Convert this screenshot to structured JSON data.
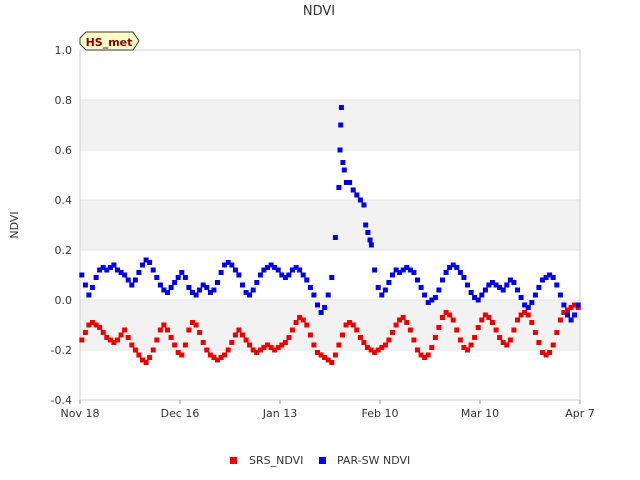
{
  "chart_data": {
    "type": "scatter",
    "title": "NDVI",
    "xlabel": "",
    "ylabel": "NDVI",
    "badge": "HS_met",
    "ylim": [
      -0.4,
      1.0
    ],
    "y_ticks": [
      "-0.4",
      "-0.2",
      "0.0",
      "0.2",
      "0.4",
      "0.6",
      "0.8",
      "1.0"
    ],
    "y_tick_values": [
      -0.4,
      -0.2,
      0.0,
      0.2,
      0.4,
      0.6,
      0.8,
      1.0
    ],
    "xlim_days": [
      0,
      140
    ],
    "x_ticks": [
      {
        "label": "Nov 18",
        "day": 0
      },
      {
        "label": "Dec 16",
        "day": 28
      },
      {
        "label": "Jan 13",
        "day": 56
      },
      {
        "label": "Feb 10",
        "day": 84
      },
      {
        "label": "Mar 10",
        "day": 112
      },
      {
        "label": "Apr 7",
        "day": 140
      }
    ],
    "bands": [
      [
        -0.2,
        0.0
      ],
      [
        0.2,
        0.4
      ],
      [
        0.6,
        0.8
      ]
    ],
    "colors": {
      "band": "#f2f2f2",
      "grid": "#e6e6e6",
      "axis": "#cccccc",
      "badge_bg": "#ffffcc"
    },
    "series": [
      {
        "name": "SRS_NDVI",
        "color": "#ee0000",
        "points": [
          [
            0.5,
            -0.16
          ],
          [
            1.5,
            -0.13
          ],
          [
            2.5,
            -0.1
          ],
          [
            3.5,
            -0.09
          ],
          [
            4.5,
            -0.1
          ],
          [
            5.5,
            -0.11
          ],
          [
            6.5,
            -0.13
          ],
          [
            7.5,
            -0.15
          ],
          [
            8.5,
            -0.16
          ],
          [
            9.5,
            -0.17
          ],
          [
            10.5,
            -0.16
          ],
          [
            11.5,
            -0.14
          ],
          [
            12.5,
            -0.12
          ],
          [
            13.5,
            -0.15
          ],
          [
            14.5,
            -0.18
          ],
          [
            15.5,
            -0.2
          ],
          [
            16.5,
            -0.22
          ],
          [
            17.5,
            -0.24
          ],
          [
            18.5,
            -0.25
          ],
          [
            19.5,
            -0.23
          ],
          [
            20.5,
            -0.2
          ],
          [
            21.5,
            -0.16
          ],
          [
            22.5,
            -0.12
          ],
          [
            23.5,
            -0.1
          ],
          [
            24.5,
            -0.12
          ],
          [
            25.5,
            -0.15
          ],
          [
            26.5,
            -0.18
          ],
          [
            27.5,
            -0.21
          ],
          [
            28.5,
            -0.22
          ],
          [
            29.5,
            -0.18
          ],
          [
            30.5,
            -0.12
          ],
          [
            31.5,
            -0.09
          ],
          [
            32.5,
            -0.1
          ],
          [
            33.5,
            -0.13
          ],
          [
            34.5,
            -0.17
          ],
          [
            35.5,
            -0.2
          ],
          [
            36.5,
            -0.22
          ],
          [
            37.5,
            -0.23
          ],
          [
            38.5,
            -0.24
          ],
          [
            39.5,
            -0.23
          ],
          [
            40.5,
            -0.22
          ],
          [
            41.5,
            -0.2
          ],
          [
            42.5,
            -0.17
          ],
          [
            43.5,
            -0.14
          ],
          [
            44.5,
            -0.12
          ],
          [
            45.5,
            -0.14
          ],
          [
            46.5,
            -0.16
          ],
          [
            47.5,
            -0.18
          ],
          [
            48.5,
            -0.2
          ],
          [
            49.5,
            -0.21
          ],
          [
            50.5,
            -0.2
          ],
          [
            51.5,
            -0.19
          ],
          [
            52.5,
            -0.18
          ],
          [
            53.5,
            -0.19
          ],
          [
            54.5,
            -0.2
          ],
          [
            55.5,
            -0.19
          ],
          [
            56.5,
            -0.18
          ],
          [
            57.5,
            -0.17
          ],
          [
            58.5,
            -0.15
          ],
          [
            59.5,
            -0.12
          ],
          [
            60.5,
            -0.09
          ],
          [
            61.5,
            -0.07
          ],
          [
            62.5,
            -0.08
          ],
          [
            63.5,
            -0.1
          ],
          [
            64.5,
            -0.14
          ],
          [
            65.5,
            -0.18
          ],
          [
            66.5,
            -0.21
          ],
          [
            67.5,
            -0.22
          ],
          [
            68.5,
            -0.23
          ],
          [
            69.5,
            -0.24
          ],
          [
            70.5,
            -0.25
          ],
          [
            71.5,
            -0.22
          ],
          [
            72.5,
            -0.18
          ],
          [
            73.5,
            -0.14
          ],
          [
            74.5,
            -0.1
          ],
          [
            75.5,
            -0.09
          ],
          [
            76.5,
            -0.1
          ],
          [
            77.5,
            -0.12
          ],
          [
            78.5,
            -0.15
          ],
          [
            79.5,
            -0.17
          ],
          [
            80.5,
            -0.19
          ],
          [
            81.5,
            -0.2
          ],
          [
            82.5,
            -0.21
          ],
          [
            83.5,
            -0.2
          ],
          [
            84.5,
            -0.19
          ],
          [
            85.5,
            -0.18
          ],
          [
            86.5,
            -0.16
          ],
          [
            87.5,
            -0.13
          ],
          [
            88.5,
            -0.1
          ],
          [
            89.5,
            -0.08
          ],
          [
            90.5,
            -0.07
          ],
          [
            91.5,
            -0.09
          ],
          [
            92.5,
            -0.12
          ],
          [
            93.5,
            -0.16
          ],
          [
            94.5,
            -0.2
          ],
          [
            95.5,
            -0.22
          ],
          [
            96.5,
            -0.23
          ],
          [
            97.5,
            -0.22
          ],
          [
            98.5,
            -0.19
          ],
          [
            99.5,
            -0.15
          ],
          [
            100.5,
            -0.11
          ],
          [
            101.5,
            -0.07
          ],
          [
            102.5,
            -0.05
          ],
          [
            103.5,
            -0.06
          ],
          [
            104.5,
            -0.08
          ],
          [
            105.5,
            -0.12
          ],
          [
            106.5,
            -0.16
          ],
          [
            107.5,
            -0.19
          ],
          [
            108.5,
            -0.2
          ],
          [
            109.5,
            -0.18
          ],
          [
            110.5,
            -0.15
          ],
          [
            111.5,
            -0.11
          ],
          [
            112.5,
            -0.08
          ],
          [
            113.5,
            -0.06
          ],
          [
            114.5,
            -0.07
          ],
          [
            115.5,
            -0.09
          ],
          [
            116.5,
            -0.12
          ],
          [
            117.5,
            -0.15
          ],
          [
            118.5,
            -0.17
          ],
          [
            119.5,
            -0.18
          ],
          [
            120.5,
            -0.16
          ],
          [
            121.5,
            -0.12
          ],
          [
            122.5,
            -0.08
          ],
          [
            123.5,
            -0.06
          ],
          [
            124.5,
            -0.05
          ],
          [
            125.5,
            -0.06
          ],
          [
            126.5,
            -0.09
          ],
          [
            127.5,
            -0.13
          ],
          [
            128.5,
            -0.17
          ],
          [
            129.5,
            -0.21
          ],
          [
            130.5,
            -0.22
          ],
          [
            131.5,
            -0.21
          ],
          [
            132.5,
            -0.18
          ],
          [
            133.5,
            -0.13
          ],
          [
            134.5,
            -0.08
          ],
          [
            135.5,
            -0.05
          ],
          [
            136.5,
            -0.04
          ],
          [
            137.5,
            -0.03
          ],
          [
            138.5,
            -0.02
          ],
          [
            139.5,
            -0.03
          ]
        ]
      },
      {
        "name": "PAR-SW NDVI",
        "color": "#0000ee",
        "points": [
          [
            0.5,
            0.1
          ],
          [
            1.5,
            0.06
          ],
          [
            2.5,
            0.02
          ],
          [
            3.5,
            0.05
          ],
          [
            4.5,
            0.09
          ],
          [
            5.5,
            0.12
          ],
          [
            6.5,
            0.13
          ],
          [
            7.5,
            0.12
          ],
          [
            8.5,
            0.13
          ],
          [
            9.5,
            0.14
          ],
          [
            10.5,
            0.12
          ],
          [
            11.5,
            0.11
          ],
          [
            12.5,
            0.1
          ],
          [
            13.5,
            0.08
          ],
          [
            14.5,
            0.06
          ],
          [
            15.5,
            0.08
          ],
          [
            16.5,
            0.11
          ],
          [
            17.5,
            0.14
          ],
          [
            18.5,
            0.16
          ],
          [
            19.5,
            0.15
          ],
          [
            20.5,
            0.12
          ],
          [
            21.5,
            0.09
          ],
          [
            22.5,
            0.06
          ],
          [
            23.5,
            0.04
          ],
          [
            24.5,
            0.03
          ],
          [
            25.5,
            0.05
          ],
          [
            26.5,
            0.07
          ],
          [
            27.5,
            0.09
          ],
          [
            28.5,
            0.11
          ],
          [
            29.5,
            0.09
          ],
          [
            30.5,
            0.05
          ],
          [
            31.5,
            0.03
          ],
          [
            32.5,
            0.02
          ],
          [
            33.5,
            0.04
          ],
          [
            34.5,
            0.06
          ],
          [
            35.5,
            0.05
          ],
          [
            36.5,
            0.03
          ],
          [
            37.5,
            0.04
          ],
          [
            38.5,
            0.07
          ],
          [
            39.5,
            0.11
          ],
          [
            40.5,
            0.14
          ],
          [
            41.5,
            0.15
          ],
          [
            42.5,
            0.14
          ],
          [
            43.5,
            0.12
          ],
          [
            44.5,
            0.1
          ],
          [
            45.5,
            0.06
          ],
          [
            46.5,
            0.03
          ],
          [
            47.5,
            0.02
          ],
          [
            48.5,
            0.04
          ],
          [
            49.5,
            0.07
          ],
          [
            50.5,
            0.1
          ],
          [
            51.5,
            0.12
          ],
          [
            52.5,
            0.13
          ],
          [
            53.5,
            0.14
          ],
          [
            54.5,
            0.13
          ],
          [
            55.5,
            0.12
          ],
          [
            56.5,
            0.1
          ],
          [
            57.5,
            0.09
          ],
          [
            58.5,
            0.1
          ],
          [
            59.5,
            0.12
          ],
          [
            60.5,
            0.13
          ],
          [
            61.5,
            0.12
          ],
          [
            62.5,
            0.1
          ],
          [
            63.5,
            0.08
          ],
          [
            64.5,
            0.05
          ],
          [
            65.5,
            0.02
          ],
          [
            66.5,
            -0.02
          ],
          [
            67.5,
            -0.05
          ],
          [
            68.5,
            -0.03
          ],
          [
            69.5,
            0.02
          ],
          [
            70.5,
            0.09
          ],
          [
            71.5,
            0.25
          ],
          [
            72.5,
            0.45
          ],
          [
            72.8,
            0.6
          ],
          [
            73.0,
            0.7
          ],
          [
            73.2,
            0.77
          ],
          [
            73.6,
            0.55
          ],
          [
            74.0,
            0.52
          ],
          [
            74.6,
            0.47
          ],
          [
            75.5,
            0.47
          ],
          [
            76.5,
            0.44
          ],
          [
            77.5,
            0.42
          ],
          [
            78.5,
            0.4
          ],
          [
            79.5,
            0.38
          ],
          [
            80.0,
            0.3
          ],
          [
            80.6,
            0.27
          ],
          [
            81.2,
            0.24
          ],
          [
            81.6,
            0.22
          ],
          [
            82.5,
            0.12
          ],
          [
            83.5,
            0.05
          ],
          [
            84.5,
            0.02
          ],
          [
            85.5,
            0.04
          ],
          [
            86.5,
            0.07
          ],
          [
            87.5,
            0.1
          ],
          [
            88.5,
            0.12
          ],
          [
            89.5,
            0.11
          ],
          [
            90.5,
            0.12
          ],
          [
            91.5,
            0.13
          ],
          [
            92.5,
            0.12
          ],
          [
            93.5,
            0.11
          ],
          [
            94.5,
            0.08
          ],
          [
            95.5,
            0.05
          ],
          [
            96.5,
            0.02
          ],
          [
            97.5,
            -0.01
          ],
          [
            98.5,
            0.0
          ],
          [
            99.5,
            0.01
          ],
          [
            100.5,
            0.04
          ],
          [
            101.5,
            0.08
          ],
          [
            102.5,
            0.11
          ],
          [
            103.5,
            0.13
          ],
          [
            104.5,
            0.14
          ],
          [
            105.5,
            0.13
          ],
          [
            106.5,
            0.11
          ],
          [
            107.5,
            0.09
          ],
          [
            108.5,
            0.06
          ],
          [
            109.5,
            0.03
          ],
          [
            110.5,
            0.01
          ],
          [
            111.5,
            0.0
          ],
          [
            112.5,
            0.02
          ],
          [
            113.5,
            0.04
          ],
          [
            114.5,
            0.06
          ],
          [
            115.5,
            0.07
          ],
          [
            116.5,
            0.06
          ],
          [
            117.5,
            0.05
          ],
          [
            118.5,
            0.04
          ],
          [
            119.5,
            0.06
          ],
          [
            120.5,
            0.08
          ],
          [
            121.5,
            0.07
          ],
          [
            122.5,
            0.04
          ],
          [
            123.5,
            0.01
          ],
          [
            124.5,
            -0.02
          ],
          [
            125.5,
            -0.03
          ],
          [
            126.5,
            -0.01
          ],
          [
            127.5,
            0.02
          ],
          [
            128.5,
            0.05
          ],
          [
            129.5,
            0.08
          ],
          [
            130.5,
            0.09
          ],
          [
            131.5,
            0.1
          ],
          [
            132.5,
            0.09
          ],
          [
            133.5,
            0.06
          ],
          [
            134.5,
            0.02
          ],
          [
            135.5,
            -0.02
          ],
          [
            136.5,
            -0.06
          ],
          [
            137.5,
            -0.08
          ],
          [
            138.5,
            -0.06
          ],
          [
            139.5,
            -0.02
          ]
        ]
      }
    ]
  }
}
